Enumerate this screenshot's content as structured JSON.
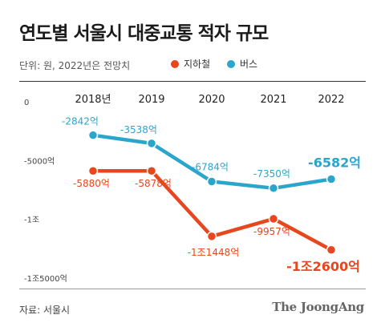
{
  "title": "연도별 서울시 대중교통 적자 규모",
  "unit_note": "단위: 원, 2022년은 전망치",
  "source": "자료: 서울시",
  "brand": "The JoongAng",
  "colors": {
    "subway": "#e8461e",
    "bus": "#2aa6cc"
  },
  "chart_data": {
    "type": "line",
    "x": [
      "2018년",
      "2019",
      "2020",
      "2021",
      "2022"
    ],
    "ylim": [
      -15000,
      0
    ],
    "y_unit": "억 원",
    "yticks": [
      {
        "value": 0,
        "label": "0"
      },
      {
        "value": -5000,
        "label": "-5000억"
      },
      {
        "value": -10000,
        "label": "-1조"
      },
      {
        "value": -15000,
        "label": "-1조5000억"
      }
    ],
    "grid": false,
    "legend_position": "top",
    "series": [
      {
        "name": "지하철",
        "color": "#e8461e",
        "values": [
          -5880,
          -5878,
          -11448,
          -9957,
          -12600
        ],
        "labels": [
          "-5880억",
          "-5878억",
          "-1조1448억",
          "-9957억",
          "-1조2600억"
        ]
      },
      {
        "name": "버스",
        "color": "#2aa6cc",
        "values": [
          -2842,
          -3538,
          -6784,
          -7350,
          -6582
        ],
        "labels": [
          "-2842억",
          "-3538억",
          "-6784억",
          "-7350억",
          "-6582억"
        ]
      }
    ]
  }
}
